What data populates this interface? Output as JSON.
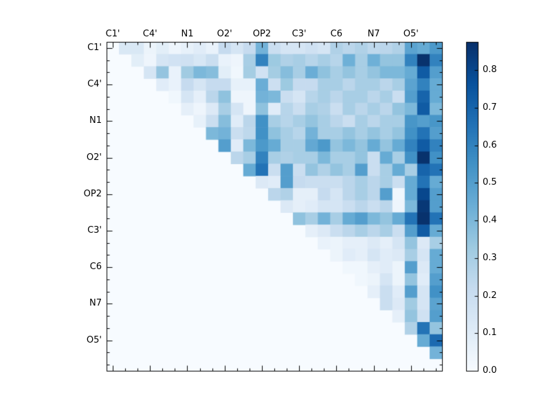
{
  "colors": {
    "background": "#ffffff",
    "axis": "#000000",
    "cmap_low": "#f7fbff",
    "cmap_high": "#08306b"
  },
  "chart_data": {
    "type": "heatmap",
    "title": "",
    "description": "Upper-triangular pairwise heatmap, Blues colormap, 27x27 cells, labels every 3rd cell",
    "colormap": "Blues",
    "vmin": 0.0,
    "vmax": 0.875,
    "n": 27,
    "label_cell_positions": [
      0,
      3,
      6,
      9,
      12,
      15,
      18,
      21,
      24
    ],
    "x_tick_labels": [
      "C1'",
      "C4'",
      "N1",
      "O2'",
      "OP2",
      "C3'",
      "C6",
      "N7",
      "O5'"
    ],
    "y_tick_labels": [
      "C1'",
      "C4'",
      "N1",
      "O2'",
      "OP2",
      "C3'",
      "C6",
      "N7",
      "O5'"
    ],
    "grid": false,
    "legend_position": "right-colorbar",
    "colorbar": {
      "tick_labels": [
        "0.0",
        "0.1",
        "0.2",
        "0.3",
        "0.4",
        "0.5",
        "0.6",
        "0.7",
        "0.8"
      ],
      "tick_values": [
        0.0,
        0.1,
        0.2,
        0.3,
        0.4,
        0.5,
        0.6,
        0.7,
        0.8
      ]
    },
    "matrix": [
      [
        0,
        0.13,
        0.13,
        0.05,
        0.09,
        0.04,
        0.07,
        0.1,
        0.06,
        0.22,
        0.15,
        0.22,
        0.42,
        0.2,
        0.15,
        0.15,
        0.18,
        0.15,
        0.28,
        0.25,
        0.28,
        0.24,
        0.25,
        0.28,
        0.48,
        0.45,
        0.52
      ],
      [
        0,
        0,
        0.09,
        0.04,
        0.15,
        0.17,
        0.18,
        0.14,
        0.2,
        0.06,
        0.04,
        0.3,
        0.6,
        0.33,
        0.28,
        0.3,
        0.26,
        0.3,
        0.26,
        0.43,
        0.3,
        0.43,
        0.35,
        0.35,
        0.6,
        0.87,
        0.6
      ],
      [
        0,
        0,
        0,
        0.15,
        0.35,
        0.06,
        0.32,
        0.4,
        0.38,
        0.09,
        0.03,
        0.31,
        0.17,
        0.31,
        0.38,
        0.3,
        0.44,
        0.36,
        0.3,
        0.35,
        0.3,
        0.35,
        0.4,
        0.4,
        0.45,
        0.73,
        0.5
      ],
      [
        0,
        0,
        0,
        0,
        0.1,
        0.06,
        0.22,
        0.15,
        0.22,
        0.22,
        0.07,
        0.07,
        0.44,
        0.19,
        0.33,
        0.22,
        0.22,
        0.3,
        0.3,
        0.25,
        0.3,
        0.3,
        0.25,
        0.3,
        0.48,
        0.6,
        0.45
      ],
      [
        0,
        0,
        0,
        0,
        0,
        0.03,
        0.15,
        0.08,
        0.25,
        0.36,
        0.04,
        0.04,
        0.42,
        0.4,
        0.2,
        0.15,
        0.26,
        0.3,
        0.25,
        0.3,
        0.3,
        0.25,
        0.3,
        0.2,
        0.5,
        0.7,
        0.45
      ],
      [
        0,
        0,
        0,
        0,
        0,
        0,
        0.08,
        0.04,
        0.12,
        0.3,
        0.15,
        0.04,
        0.36,
        0.1,
        0.26,
        0.2,
        0.3,
        0.28,
        0.2,
        0.3,
        0.25,
        0.3,
        0.25,
        0.35,
        0.4,
        0.73,
        0.4
      ],
      [
        0,
        0,
        0,
        0,
        0,
        0,
        0,
        0.07,
        0.2,
        0.38,
        0.1,
        0.25,
        0.55,
        0.3,
        0.26,
        0.3,
        0.35,
        0.3,
        0.25,
        0.2,
        0.3,
        0.25,
        0.3,
        0.3,
        0.53,
        0.5,
        0.53
      ],
      [
        0,
        0,
        0,
        0,
        0,
        0,
        0,
        0,
        0.4,
        0.42,
        0.2,
        0.24,
        0.55,
        0.36,
        0.3,
        0.26,
        0.42,
        0.3,
        0.3,
        0.35,
        0.3,
        0.35,
        0.3,
        0.35,
        0.55,
        0.65,
        0.5
      ],
      [
        0,
        0,
        0,
        0,
        0,
        0,
        0,
        0,
        0,
        0.5,
        0.1,
        0.4,
        0.52,
        0.45,
        0.3,
        0.3,
        0.46,
        0.52,
        0.35,
        0.4,
        0.35,
        0.45,
        0.35,
        0.45,
        0.6,
        0.73,
        0.6
      ],
      [
        0,
        0,
        0,
        0,
        0,
        0,
        0,
        0,
        0,
        0,
        0.25,
        0.3,
        0.6,
        0.3,
        0.28,
        0.3,
        0.3,
        0.4,
        0.3,
        0.3,
        0.35,
        0.2,
        0.45,
        0.3,
        0.55,
        0.87,
        0.55
      ],
      [
        0,
        0,
        0,
        0,
        0,
        0,
        0,
        0,
        0,
        0,
        0,
        0.45,
        0.65,
        0.2,
        0.5,
        0.2,
        0.35,
        0.28,
        0.35,
        0.3,
        0.5,
        0.2,
        0.3,
        0.45,
        0.3,
        0.7,
        0.65
      ],
      [
        0,
        0,
        0,
        0,
        0,
        0,
        0,
        0,
        0,
        0,
        0,
        0,
        0.12,
        0.1,
        0.5,
        0.22,
        0.2,
        0.2,
        0.2,
        0.25,
        0.3,
        0.25,
        0.3,
        0.2,
        0.45,
        0.65,
        0.45
      ],
      [
        0,
        0,
        0,
        0,
        0,
        0,
        0,
        0,
        0,
        0,
        0,
        0,
        0,
        0.25,
        0.28,
        0.08,
        0.08,
        0.22,
        0.15,
        0.25,
        0.3,
        0.25,
        0.5,
        0.03,
        0.45,
        0.8,
        0.5
      ],
      [
        0,
        0,
        0,
        0,
        0,
        0,
        0,
        0,
        0,
        0,
        0,
        0,
        0,
        0,
        0.12,
        0.08,
        0.1,
        0.15,
        0.15,
        0.2,
        0.25,
        0.2,
        0.25,
        0.04,
        0.4,
        0.85,
        0.5
      ],
      [
        0,
        0,
        0,
        0,
        0,
        0,
        0,
        0,
        0,
        0,
        0,
        0,
        0,
        0,
        0,
        0.36,
        0.3,
        0.42,
        0.3,
        0.45,
        0.5,
        0.4,
        0.35,
        0.45,
        0.65,
        0.87,
        0.65
      ],
      [
        0,
        0,
        0,
        0,
        0,
        0,
        0,
        0,
        0,
        0,
        0,
        0,
        0,
        0,
        0,
        0,
        0.08,
        0.12,
        0.2,
        0.25,
        0.3,
        0.25,
        0.3,
        0.2,
        0.5,
        0.73,
        0.45
      ],
      [
        0,
        0,
        0,
        0,
        0,
        0,
        0,
        0,
        0,
        0,
        0,
        0,
        0,
        0,
        0,
        0,
        0,
        0.06,
        0.05,
        0.08,
        0.08,
        0.12,
        0.08,
        0.15,
        0.35,
        0.12,
        0.3
      ],
      [
        0,
        0,
        0,
        0,
        0,
        0,
        0,
        0,
        0,
        0,
        0,
        0,
        0,
        0,
        0,
        0,
        0,
        0,
        0.05,
        0.1,
        0.08,
        0.15,
        0.1,
        0.12,
        0.3,
        0.15,
        0.45
      ],
      [
        0,
        0,
        0,
        0,
        0,
        0,
        0,
        0,
        0,
        0,
        0,
        0,
        0,
        0,
        0,
        0,
        0,
        0,
        0,
        0.03,
        0.03,
        0.08,
        0.1,
        0.05,
        0.5,
        0.12,
        0.45
      ],
      [
        0,
        0,
        0,
        0,
        0,
        0,
        0,
        0,
        0,
        0,
        0,
        0,
        0,
        0,
        0,
        0,
        0,
        0,
        0,
        0,
        0.03,
        0.05,
        0.15,
        0.05,
        0.35,
        0.1,
        0.5
      ],
      [
        0,
        0,
        0,
        0,
        0,
        0,
        0,
        0,
        0,
        0,
        0,
        0,
        0,
        0,
        0,
        0,
        0,
        0,
        0,
        0,
        0,
        0.08,
        0.2,
        0.1,
        0.5,
        0.15,
        0.55
      ],
      [
        0,
        0,
        0,
        0,
        0,
        0,
        0,
        0,
        0,
        0,
        0,
        0,
        0,
        0,
        0,
        0,
        0,
        0,
        0,
        0,
        0,
        0,
        0.2,
        0.12,
        0.32,
        0.15,
        0.48
      ],
      [
        0,
        0,
        0,
        0,
        0,
        0,
        0,
        0,
        0,
        0,
        0,
        0,
        0,
        0,
        0,
        0,
        0,
        0,
        0,
        0,
        0,
        0,
        0,
        0.08,
        0.35,
        0.18,
        0.5
      ],
      [
        0,
        0,
        0,
        0,
        0,
        0,
        0,
        0,
        0,
        0,
        0,
        0,
        0,
        0,
        0,
        0,
        0,
        0,
        0,
        0,
        0,
        0,
        0,
        0,
        0.28,
        0.65,
        0.35
      ],
      [
        0,
        0,
        0,
        0,
        0,
        0,
        0,
        0,
        0,
        0,
        0,
        0,
        0,
        0,
        0,
        0,
        0,
        0,
        0,
        0,
        0,
        0,
        0,
        0,
        0,
        0.45,
        0.68
      ],
      [
        0,
        0,
        0,
        0,
        0,
        0,
        0,
        0,
        0,
        0,
        0,
        0,
        0,
        0,
        0,
        0,
        0,
        0,
        0,
        0,
        0,
        0,
        0,
        0,
        0,
        0,
        0.42
      ],
      [
        0,
        0,
        0,
        0,
        0,
        0,
        0,
        0,
        0,
        0,
        0,
        0,
        0,
        0,
        0,
        0,
        0,
        0,
        0,
        0,
        0,
        0,
        0,
        0,
        0,
        0,
        0
      ]
    ]
  }
}
